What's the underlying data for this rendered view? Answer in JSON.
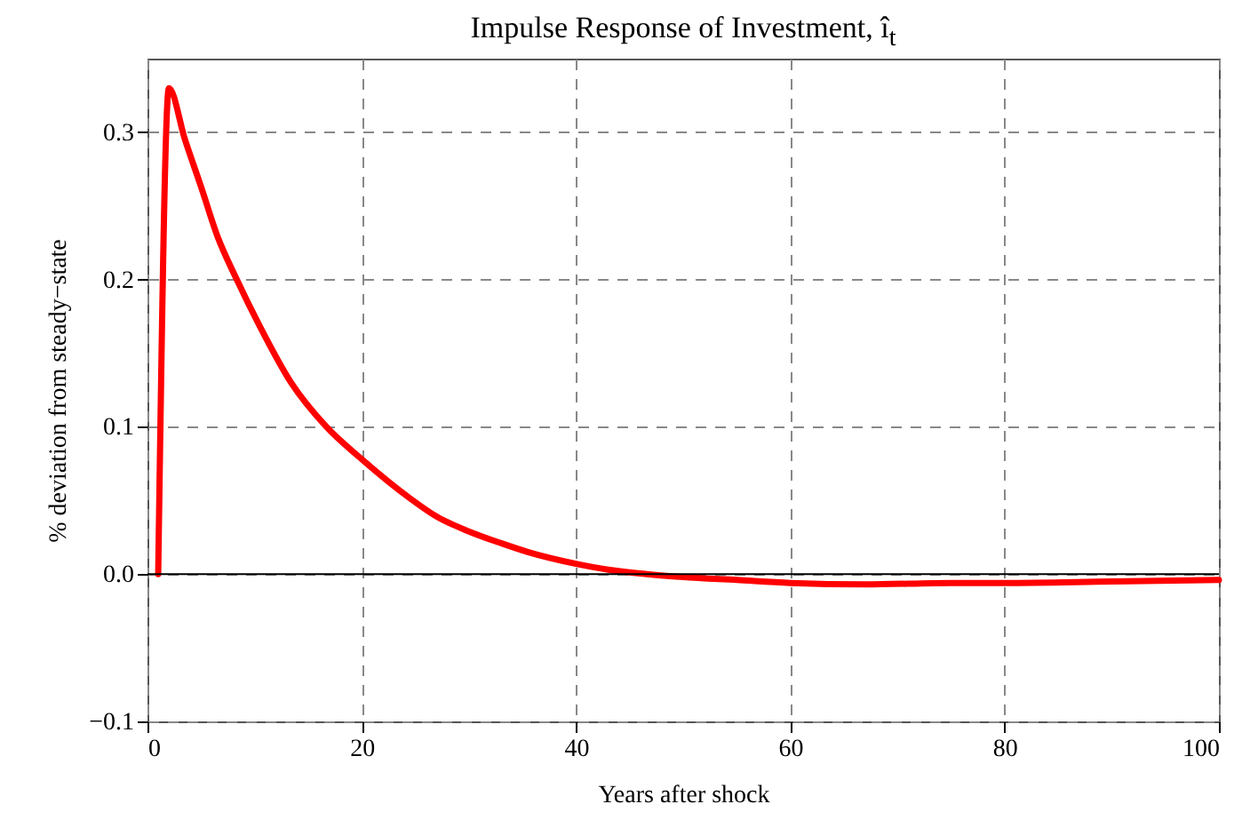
{
  "chart_data": {
    "type": "line",
    "title": "Impulse Response of Investment, î$_{t}$",
    "xlabel": "Years after shock",
    "ylabel": "% deviation from steady−state",
    "x": [
      1,
      2,
      3.5,
      5,
      6.5,
      8.4,
      10.5,
      13.4,
      16.7,
      20,
      24.4,
      27,
      30,
      33,
      35.5,
      40,
      43,
      46.6,
      50,
      55,
      60,
      67,
      75,
      80,
      90,
      100
    ],
    "series": [
      {
        "color": "#ff0000",
        "values": [
          0,
          0.33,
          0.295,
          0.263,
          0.23,
          0.199,
          0.168,
          0.13,
          0.1,
          0.078,
          0.052,
          0.039,
          0.029,
          0.021,
          0.015,
          0.007,
          0.003,
          0,
          -0.002,
          -0.004,
          -0.006,
          -0.007,
          -0.006,
          -0.006,
          -0.005,
          -0.004
        ]
      }
    ],
    "xlim": [
      0,
      100
    ],
    "xticks": [
      0,
      20,
      40,
      60,
      80,
      100
    ],
    "ylim": [
      -0.1,
      0.35
    ],
    "yticks": [
      {
        "value": -0.1,
        "label": "−0.1"
      },
      {
        "value": 0,
        "label": "0.0"
      },
      {
        "value": 0.1,
        "label": "0.1"
      },
      {
        "value": 0.2,
        "label": "0.2"
      },
      {
        "value": 0.3,
        "label": "0.3"
      }
    ],
    "ref_lines": [
      {
        "axis": "y",
        "value": 0,
        "color": "#000000"
      }
    ],
    "grid": true,
    "marker": "none",
    "line_style": "solid"
  }
}
